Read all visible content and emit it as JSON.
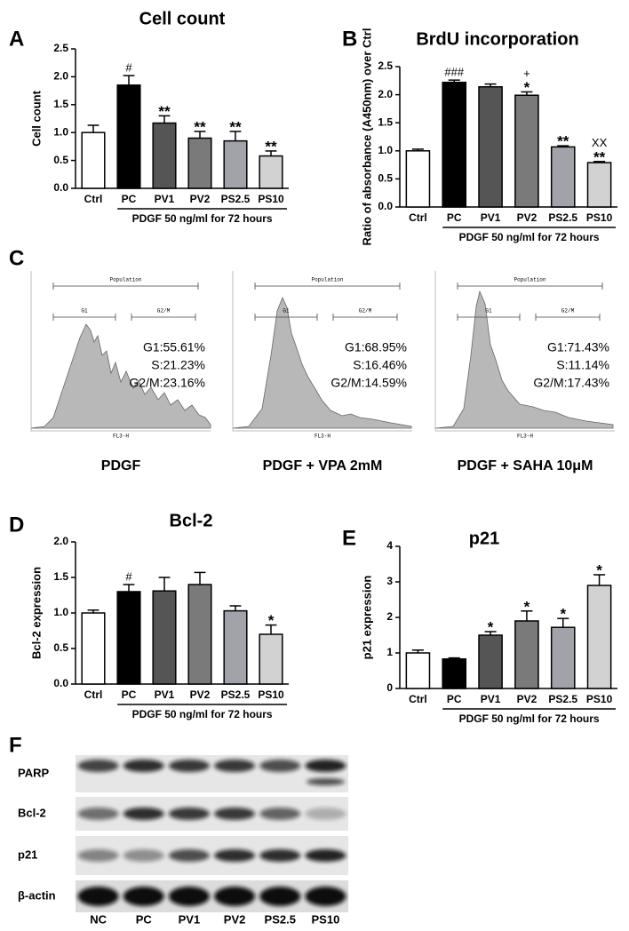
{
  "chart_data": [
    {
      "type": "bar",
      "label": "A",
      "title": "Cell count",
      "ylabel": "Cell count",
      "xlabel": "PDGF 50 ng/ml for 72 hours",
      "categories": [
        "Ctrl",
        "PC",
        "PV1",
        "PV2",
        "PS2.5",
        "PS10"
      ],
      "values": [
        1.0,
        1.85,
        1.17,
        0.9,
        0.85,
        0.58
      ],
      "errors": [
        0.13,
        0.17,
        0.13,
        0.12,
        0.17,
        0.09
      ],
      "markers": [
        null,
        [
          "#"
        ],
        [
          "**"
        ],
        [
          "**"
        ],
        [
          "**"
        ],
        [
          "**"
        ]
      ],
      "colors": [
        "#ffffff",
        "#000000",
        "#555555",
        "#7a7a7a",
        "#a2a2aa",
        "#d2d2d2"
      ],
      "ylim": [
        0,
        2.5
      ],
      "yticks": [
        {
          "value": 0,
          "label": "0.0"
        },
        {
          "value": 0.5,
          "label": "0.5"
        },
        {
          "value": 1,
          "label": "1.0"
        },
        {
          "value": 1.5,
          "label": "1.5"
        },
        {
          "value": 2,
          "label": "2.0"
        },
        {
          "value": 2.5,
          "label": "2.5"
        }
      ]
    },
    {
      "type": "bar",
      "label": "B",
      "title": "BrdU incorporation",
      "ylabel": "Ratio of absorbance (A450nm) over Ctrl",
      "xlabel": "PDGF 50 ng/ml for 72 hours",
      "categories": [
        "Ctrl",
        "PC",
        "PV1",
        "PV2",
        "PS2.5",
        "PS10"
      ],
      "values": [
        1.0,
        2.22,
        2.14,
        1.99,
        1.07,
        0.79
      ],
      "errors": [
        0.03,
        0.04,
        0.05,
        0.06,
        0.02,
        0.02
      ],
      "markers": [
        null,
        [
          "###"
        ],
        null,
        [
          "+",
          "*"
        ],
        [
          "**"
        ],
        [
          "XX",
          "**"
        ]
      ],
      "colors": [
        "#ffffff",
        "#000000",
        "#555555",
        "#7a7a7a",
        "#a2a2aa",
        "#d2d2d2"
      ],
      "ylim": [
        0,
        2.5
      ],
      "yticks": [
        {
          "value": 0,
          "label": "0.0"
        },
        {
          "value": 0.5,
          "label": "0.5"
        },
        {
          "value": 1,
          "label": "1.0"
        },
        {
          "value": 1.5,
          "label": "1.5"
        },
        {
          "value": 2,
          "label": "2.0"
        },
        {
          "value": 2.5,
          "label": "2.5"
        }
      ]
    },
    {
      "type": "flow-histogram",
      "label": "C",
      "gates": [
        "Population",
        "G1",
        "G2/M"
      ],
      "xlabel": "FL3-H",
      "panels": [
        {
          "title": "PDGF",
          "stats": [
            "G1:55.61%",
            "S:21.23%",
            "G2/M:23.16%"
          ]
        },
        {
          "title": "PDGF + VPA 2mM",
          "stats": [
            "G1:68.95%",
            "S:16.46%",
            "G2/M:14.59%"
          ]
        },
        {
          "title": "PDGF + SAHA 10μM",
          "stats": [
            "G1:71.43%",
            "S:11.14%",
            "G2/M:17.43%"
          ]
        }
      ]
    },
    {
      "type": "bar",
      "label": "D",
      "title": "Bcl-2",
      "ylabel": "Bcl-2 expression",
      "xlabel": "PDGF 50 ng/ml for 72 hours",
      "categories": [
        "Ctrl",
        "PC",
        "PV1",
        "PV2",
        "PS2.5",
        "PS10"
      ],
      "values": [
        1.0,
        1.3,
        1.31,
        1.4,
        1.03,
        0.7
      ],
      "errors": [
        0.04,
        0.1,
        0.19,
        0.17,
        0.07,
        0.13
      ],
      "markers": [
        null,
        [
          "#"
        ],
        null,
        null,
        null,
        [
          "*"
        ]
      ],
      "colors": [
        "#ffffff",
        "#000000",
        "#555555",
        "#7a7a7a",
        "#a2a2aa",
        "#d2d2d2"
      ],
      "ylim": [
        0,
        2.0
      ],
      "yticks": [
        {
          "value": 0,
          "label": "0.0"
        },
        {
          "value": 0.5,
          "label": "0.5"
        },
        {
          "value": 1,
          "label": "1.0"
        },
        {
          "value": 1.5,
          "label": "1.5"
        },
        {
          "value": 2,
          "label": "2.0"
        }
      ]
    },
    {
      "type": "bar",
      "label": "E",
      "title": "p21",
      "ylabel": "p21 expression",
      "xlabel": "PDGF 50 ng/ml for 72 hours",
      "categories": [
        "Ctrl",
        "PC",
        "PV1",
        "PV2",
        "PS2.5",
        "PS10"
      ],
      "values": [
        1.0,
        0.83,
        1.5,
        1.9,
        1.72,
        2.9
      ],
      "errors": [
        0.08,
        0.03,
        0.1,
        0.28,
        0.25,
        0.3
      ],
      "markers": [
        null,
        null,
        [
          "*"
        ],
        [
          "*"
        ],
        [
          "*"
        ],
        [
          "*"
        ]
      ],
      "colors": [
        "#ffffff",
        "#000000",
        "#555555",
        "#7a7a7a",
        "#a2a2aa",
        "#d2d2d2"
      ],
      "ylim": [
        0,
        4
      ],
      "yticks": [
        0,
        1,
        2,
        3,
        4
      ]
    },
    {
      "type": "blot",
      "label": "F",
      "rows": [
        "PARP",
        "Bcl-2",
        "p21",
        "β-actin"
      ],
      "lanes": [
        "NC",
        "PC",
        "PV1",
        "PV2",
        "PS2.5",
        "PS10"
      ]
    }
  ]
}
